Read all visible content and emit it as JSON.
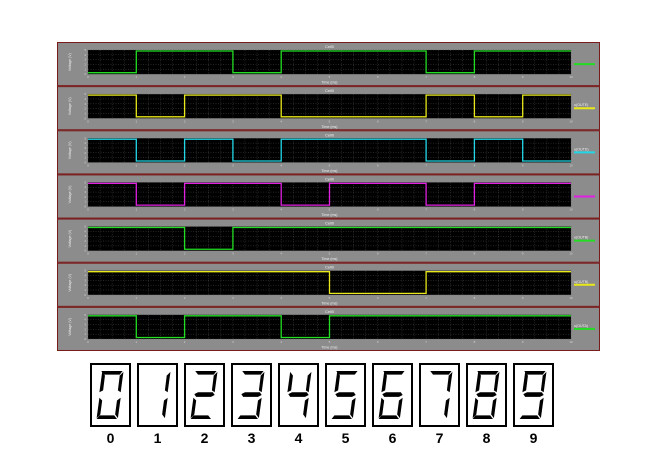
{
  "chart_data": {
    "type": "line",
    "x_range": [
      0,
      10
    ],
    "x_ticks": [
      0,
      1,
      2,
      3,
      4,
      5,
      6,
      7,
      8,
      9,
      10
    ],
    "y_range": [
      0,
      5
    ],
    "y_ticks": [
      0,
      1,
      2,
      3,
      4,
      5
    ],
    "grid": true,
    "legend_position": "right",
    "panels": [
      {
        "title": "Cell0",
        "xlabel": "Time (ms)",
        "ylabel": "Voltage (V)",
        "color": "#22dd22",
        "legend": "",
        "levels": [
          0,
          1,
          1,
          0,
          1,
          1,
          1,
          0,
          1,
          1
        ]
      },
      {
        "title": "Cell0",
        "xlabel": "Time (ms)",
        "ylabel": "Voltage (V)",
        "color": "#e8e81a",
        "legend": "u(OUTE)",
        "levels": [
          1,
          0,
          1,
          1,
          0,
          0,
          0,
          1,
          0,
          1
        ]
      },
      {
        "title": "Cell0",
        "xlabel": "Time (ms)",
        "ylabel": "Voltage (V)",
        "color": "#22d8e8",
        "legend": "u(OUTD)",
        "levels": [
          1,
          0,
          1,
          0,
          1,
          1,
          1,
          0,
          1,
          0
        ]
      },
      {
        "title": "Cell0",
        "xlabel": "Time (ms)",
        "ylabel": "Voltage (V)",
        "color": "#e020e0",
        "legend": "",
        "levels": [
          1,
          0,
          1,
          1,
          0,
          1,
          1,
          0,
          1,
          1
        ]
      },
      {
        "title": "Cell0",
        "xlabel": "Time (ms)",
        "ylabel": "Voltage (V)",
        "color": "#22dd22",
        "legend": "u(OUTB)",
        "levels": [
          1,
          1,
          0,
          1,
          1,
          1,
          1,
          1,
          1,
          1
        ]
      },
      {
        "title": "Cell0",
        "xlabel": "Time (ms)",
        "ylabel": "Voltage (V)",
        "color": "#e8e81a",
        "legend": "u(OUTB)",
        "levels": [
          1,
          1,
          1,
          1,
          1,
          0,
          0,
          1,
          1,
          1
        ]
      },
      {
        "title": "Cell0",
        "xlabel": "Time (ms)",
        "ylabel": "Voltage (V)",
        "color": "#22dd22",
        "legend": "u(OUTA)",
        "levels": [
          1,
          0,
          1,
          1,
          0,
          1,
          1,
          1,
          1,
          1
        ]
      }
    ]
  },
  "digits": {
    "labels": [
      "0",
      "1",
      "2",
      "3",
      "4",
      "5",
      "6",
      "7",
      "8",
      "9"
    ],
    "segments": [
      "abcdef",
      "bc",
      "abdeg",
      "abcdg",
      "bcfg",
      "acdfg",
      "acdefg",
      "abc",
      "abcdefg",
      "abcdfg"
    ]
  }
}
